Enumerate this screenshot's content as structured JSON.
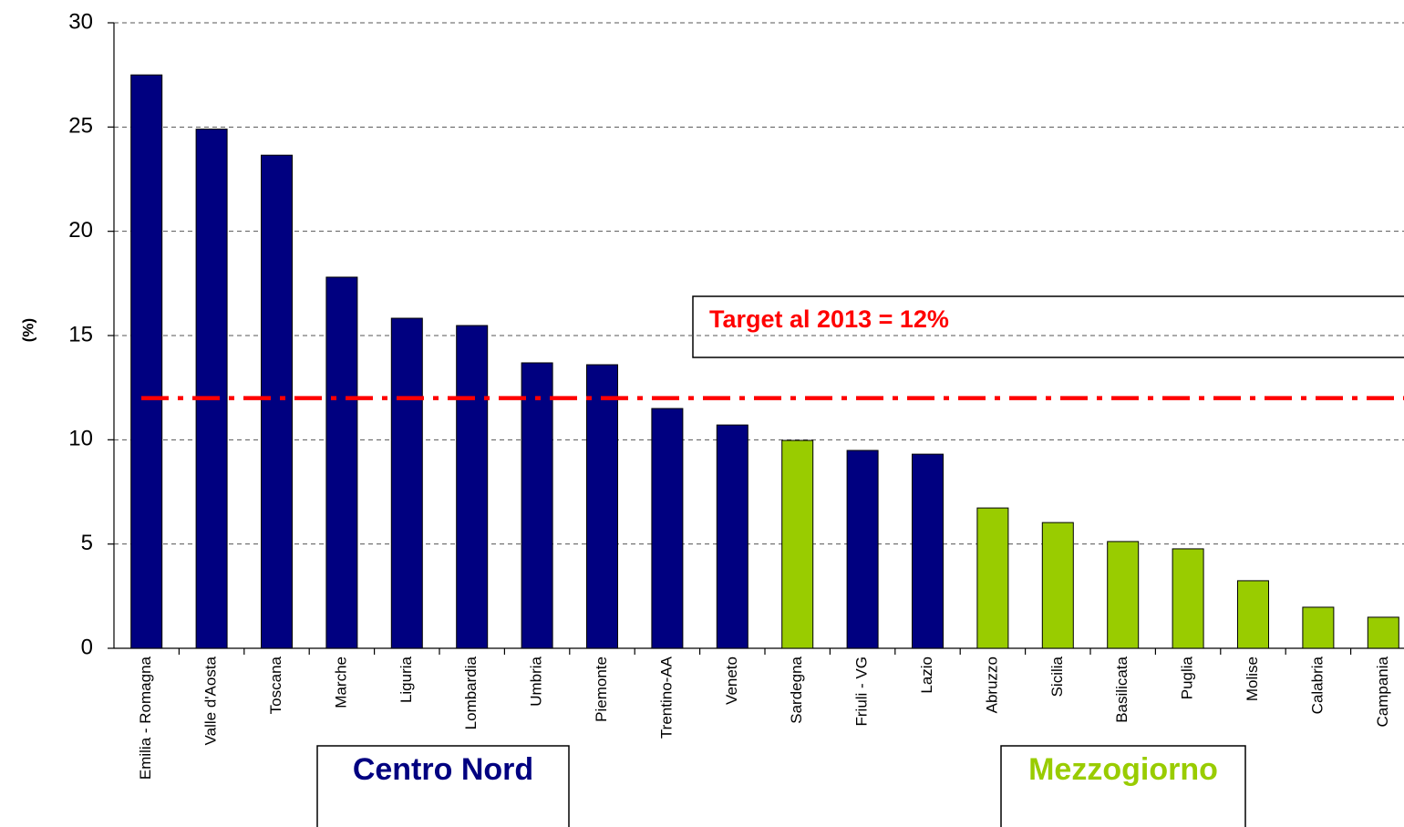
{
  "chart_data": {
    "type": "bar",
    "y_label": "(%)",
    "categories": [
      "Emilia - Romagna",
      "Valle d'Aosta",
      "Toscana",
      "Marche",
      "Liguria",
      "Lombardia",
      "Umbria",
      "Piemonte",
      "Trentino-AA",
      "Veneto",
      "Sardegna",
      "Friuli - VG",
      "Lazio",
      "Abruzzo",
      "Sicilia",
      "Basilicata",
      "Puglia",
      "Molise",
      "Calabria",
      "Campania"
    ],
    "values": [
      27.5,
      24.9,
      23.65,
      17.8,
      15.83,
      15.48,
      13.69,
      13.6,
      11.5,
      10.71,
      9.97,
      9.49,
      9.31,
      6.73,
      6.03,
      5.12,
      4.77,
      3.24,
      1.97,
      1.49
    ],
    "colors": [
      "#000080",
      "#000080",
      "#000080",
      "#000080",
      "#000080",
      "#000080",
      "#000080",
      "#000080",
      "#000080",
      "#000080",
      "#99cc00",
      "#000080",
      "#000080",
      "#99cc00",
      "#99cc00",
      "#99cc00",
      "#99cc00",
      "#99cc00",
      "#99cc00",
      "#99cc00"
    ],
    "target": 12,
    "target_color": "#ff0000",
    "annotations": {
      "target": "Target al 2013 = 12%",
      "north": "Centro Nord",
      "south": "Mezzogiorno"
    },
    "ylim": [
      0,
      30
    ],
    "yticks": [
      0,
      5,
      10,
      15,
      20,
      25,
      30
    ],
    "grid": true
  }
}
